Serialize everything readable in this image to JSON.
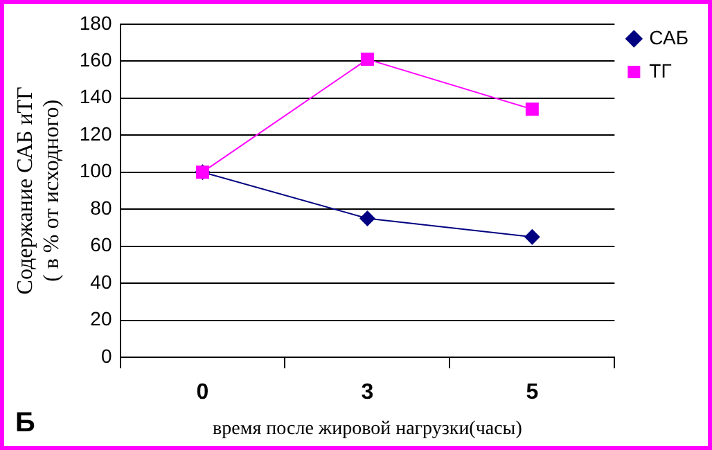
{
  "chart_data": {
    "type": "line",
    "xlabel": "время после жировой нагрузки(часы)",
    "ylabel": "Содержание САБ иТГ\n( в % от исходного)",
    "categories": [
      "0",
      "3",
      "5"
    ],
    "series": [
      {
        "name": "САБ",
        "color": "#000080",
        "values": [
          100,
          75,
          65
        ],
        "marker": "diamond"
      },
      {
        "name": "ТГ",
        "color": "#ff00ff",
        "values": [
          100,
          161,
          134
        ],
        "marker": "square"
      }
    ],
    "ylim": [
      0,
      180
    ],
    "yticks": [
      0,
      20,
      40,
      60,
      80,
      100,
      120,
      140,
      160,
      180
    ],
    "grid": "y",
    "legend": "top right",
    "line_style": "solid",
    "annotations": [
      "Б"
    ]
  }
}
